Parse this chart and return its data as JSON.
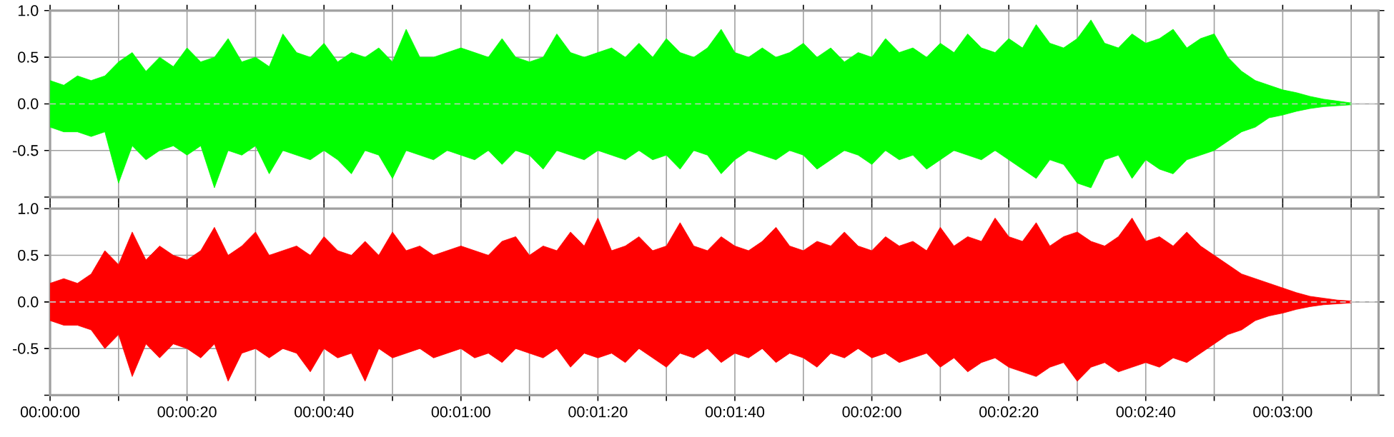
{
  "chart_data": [
    {
      "type": "area",
      "x": [
        0,
        2,
        4,
        6,
        8,
        10,
        12,
        14,
        16,
        18,
        20,
        22,
        24,
        26,
        28,
        30,
        32,
        34,
        36,
        38,
        40,
        42,
        44,
        46,
        48,
        50,
        52,
        54,
        56,
        58,
        60,
        62,
        64,
        66,
        68,
        70,
        72,
        74,
        76,
        78,
        80,
        82,
        84,
        86,
        88,
        90,
        92,
        94,
        96,
        98,
        100,
        102,
        104,
        106,
        108,
        110,
        112,
        114,
        116,
        118,
        120,
        122,
        124,
        126,
        128,
        130,
        132,
        134,
        136,
        138,
        140,
        142,
        144,
        146,
        148,
        150,
        152,
        154,
        156,
        158,
        160,
        162,
        164,
        166,
        168,
        170,
        172,
        174,
        176,
        178,
        180,
        182,
        184,
        186,
        188,
        190
      ],
      "series": [
        {
          "color": "#00ff00",
          "values": [
            0.25,
            0.2,
            0.3,
            0.25,
            0.3,
            0.45,
            0.55,
            0.35,
            0.5,
            0.4,
            0.6,
            0.45,
            0.5,
            0.7,
            0.45,
            0.5,
            0.4,
            0.75,
            0.55,
            0.5,
            0.65,
            0.45,
            0.55,
            0.5,
            0.6,
            0.45,
            0.8,
            0.5,
            0.5,
            0.55,
            0.6,
            0.55,
            0.5,
            0.7,
            0.5,
            0.45,
            0.5,
            0.75,
            0.55,
            0.5,
            0.55,
            0.6,
            0.5,
            0.65,
            0.5,
            0.7,
            0.55,
            0.5,
            0.6,
            0.8,
            0.55,
            0.5,
            0.6,
            0.5,
            0.55,
            0.65,
            0.5,
            0.6,
            0.45,
            0.55,
            0.5,
            0.7,
            0.55,
            0.6,
            0.5,
            0.65,
            0.55,
            0.75,
            0.6,
            0.55,
            0.7,
            0.6,
            0.85,
            0.65,
            0.6,
            0.7,
            0.9,
            0.65,
            0.6,
            0.75,
            0.65,
            0.7,
            0.8,
            0.6,
            0.7,
            0.75,
            0.5,
            0.35,
            0.25,
            0.2,
            0.15,
            0.12,
            0.08,
            0.05,
            0.03,
            0.01
          ]
        },
        {
          "color": "#00ff00",
          "values": [
            -0.25,
            -0.3,
            -0.3,
            -0.35,
            -0.3,
            -0.85,
            -0.45,
            -0.6,
            -0.5,
            -0.45,
            -0.55,
            -0.45,
            -0.9,
            -0.5,
            -0.55,
            -0.45,
            -0.75,
            -0.5,
            -0.55,
            -0.6,
            -0.5,
            -0.6,
            -0.75,
            -0.5,
            -0.55,
            -0.8,
            -0.5,
            -0.55,
            -0.6,
            -0.5,
            -0.55,
            -0.6,
            -0.5,
            -0.65,
            -0.5,
            -0.55,
            -0.7,
            -0.5,
            -0.55,
            -0.6,
            -0.5,
            -0.55,
            -0.6,
            -0.5,
            -0.6,
            -0.55,
            -0.7,
            -0.5,
            -0.55,
            -0.75,
            -0.6,
            -0.5,
            -0.55,
            -0.6,
            -0.5,
            -0.55,
            -0.7,
            -0.6,
            -0.5,
            -0.55,
            -0.65,
            -0.5,
            -0.6,
            -0.55,
            -0.7,
            -0.6,
            -0.5,
            -0.55,
            -0.6,
            -0.5,
            -0.6,
            -0.7,
            -0.8,
            -0.6,
            -0.65,
            -0.85,
            -0.9,
            -0.6,
            -0.55,
            -0.8,
            -0.6,
            -0.7,
            -0.75,
            -0.6,
            -0.55,
            -0.5,
            -0.4,
            -0.3,
            -0.25,
            -0.15,
            -0.12,
            -0.08,
            -0.05,
            -0.03,
            -0.02,
            -0.01
          ]
        }
      ],
      "xlim": [
        0,
        194
      ],
      "xticks": [
        {
          "value": 0,
          "label": null
        },
        {
          "value": 10,
          "label": null
        },
        {
          "value": 20,
          "label": null
        },
        {
          "value": 30,
          "label": null
        },
        {
          "value": 40,
          "label": null
        },
        {
          "value": 50,
          "label": null
        },
        {
          "value": 60,
          "label": null
        },
        {
          "value": 70,
          "label": null
        },
        {
          "value": 80,
          "label": null
        },
        {
          "value": 90,
          "label": null
        },
        {
          "value": 100,
          "label": null
        },
        {
          "value": 110,
          "label": null
        },
        {
          "value": 120,
          "label": null
        },
        {
          "value": 130,
          "label": null
        },
        {
          "value": 140,
          "label": null
        },
        {
          "value": 150,
          "label": null
        },
        {
          "value": 160,
          "label": null
        },
        {
          "value": 170,
          "label": null
        },
        {
          "value": 180,
          "label": null
        },
        {
          "value": 190,
          "label": null
        }
      ],
      "ylim": [
        -1,
        1
      ],
      "yticks": [
        {
          "value": -1,
          "label": null
        },
        {
          "value": -0.5,
          "label": "-0.5"
        },
        {
          "value": 0,
          "label": "0.0"
        },
        {
          "value": 0.5,
          "label": "0.5"
        },
        {
          "value": 1,
          "label": "1.0"
        }
      ],
      "tick_labels": "y",
      "grid": true,
      "ref_lines": [
        {
          "axis": "y",
          "value": 0,
          "color": "#c8c8c8",
          "line_style": "dashed"
        }
      ]
    },
    {
      "type": "area",
      "x": [
        0,
        2,
        4,
        6,
        8,
        10,
        12,
        14,
        16,
        18,
        20,
        22,
        24,
        26,
        28,
        30,
        32,
        34,
        36,
        38,
        40,
        42,
        44,
        46,
        48,
        50,
        52,
        54,
        56,
        58,
        60,
        62,
        64,
        66,
        68,
        70,
        72,
        74,
        76,
        78,
        80,
        82,
        84,
        86,
        88,
        90,
        92,
        94,
        96,
        98,
        100,
        102,
        104,
        106,
        108,
        110,
        112,
        114,
        116,
        118,
        120,
        122,
        124,
        126,
        128,
        130,
        132,
        134,
        136,
        138,
        140,
        142,
        144,
        146,
        148,
        150,
        152,
        154,
        156,
        158,
        160,
        162,
        164,
        166,
        168,
        170,
        172,
        174,
        176,
        178,
        180,
        182,
        184,
        186,
        188,
        190
      ],
      "series": [
        {
          "color": "#ff0000",
          "values": [
            0.2,
            0.25,
            0.2,
            0.3,
            0.55,
            0.4,
            0.75,
            0.45,
            0.6,
            0.5,
            0.45,
            0.55,
            0.8,
            0.5,
            0.6,
            0.75,
            0.5,
            0.55,
            0.6,
            0.5,
            0.7,
            0.55,
            0.5,
            0.65,
            0.5,
            0.75,
            0.55,
            0.6,
            0.5,
            0.55,
            0.6,
            0.55,
            0.5,
            0.65,
            0.7,
            0.5,
            0.6,
            0.55,
            0.75,
            0.6,
            0.9,
            0.55,
            0.6,
            0.7,
            0.55,
            0.6,
            0.85,
            0.6,
            0.55,
            0.7,
            0.6,
            0.55,
            0.65,
            0.8,
            0.6,
            0.55,
            0.65,
            0.6,
            0.75,
            0.6,
            0.55,
            0.7,
            0.6,
            0.65,
            0.55,
            0.8,
            0.6,
            0.7,
            0.65,
            0.9,
            0.7,
            0.65,
            0.85,
            0.6,
            0.7,
            0.75,
            0.65,
            0.6,
            0.7,
            0.9,
            0.65,
            0.7,
            0.6,
            0.75,
            0.6,
            0.5,
            0.4,
            0.3,
            0.25,
            0.2,
            0.15,
            0.1,
            0.06,
            0.04,
            0.02,
            0.01
          ]
        },
        {
          "color": "#ff0000",
          "values": [
            -0.2,
            -0.25,
            -0.25,
            -0.3,
            -0.5,
            -0.35,
            -0.8,
            -0.45,
            -0.6,
            -0.45,
            -0.5,
            -0.6,
            -0.45,
            -0.85,
            -0.55,
            -0.5,
            -0.6,
            -0.5,
            -0.55,
            -0.75,
            -0.5,
            -0.6,
            -0.55,
            -0.85,
            -0.5,
            -0.6,
            -0.55,
            -0.5,
            -0.6,
            -0.55,
            -0.5,
            -0.6,
            -0.55,
            -0.65,
            -0.5,
            -0.55,
            -0.6,
            -0.5,
            -0.7,
            -0.55,
            -0.6,
            -0.55,
            -0.65,
            -0.5,
            -0.6,
            -0.7,
            -0.55,
            -0.6,
            -0.5,
            -0.65,
            -0.55,
            -0.6,
            -0.5,
            -0.65,
            -0.55,
            -0.6,
            -0.7,
            -0.55,
            -0.6,
            -0.5,
            -0.6,
            -0.55,
            -0.65,
            -0.6,
            -0.55,
            -0.7,
            -0.6,
            -0.75,
            -0.65,
            -0.6,
            -0.7,
            -0.75,
            -0.8,
            -0.7,
            -0.65,
            -0.85,
            -0.7,
            -0.65,
            -0.75,
            -0.7,
            -0.65,
            -0.7,
            -0.6,
            -0.65,
            -0.55,
            -0.45,
            -0.35,
            -0.3,
            -0.2,
            -0.15,
            -0.12,
            -0.08,
            -0.05,
            -0.03,
            -0.02,
            -0.01
          ]
        }
      ],
      "xlim": [
        0,
        194
      ],
      "xticks": [
        {
          "value": 0,
          "label": "00:00:00"
        },
        {
          "value": 10,
          "label": null
        },
        {
          "value": 20,
          "label": "00:00:20"
        },
        {
          "value": 30,
          "label": null
        },
        {
          "value": 40,
          "label": "00:00:40"
        },
        {
          "value": 50,
          "label": null
        },
        {
          "value": 60,
          "label": "00:01:00"
        },
        {
          "value": 70,
          "label": null
        },
        {
          "value": 80,
          "label": "00:01:20"
        },
        {
          "value": 90,
          "label": null
        },
        {
          "value": 100,
          "label": "00:01:40"
        },
        {
          "value": 110,
          "label": null
        },
        {
          "value": 120,
          "label": "00:02:00"
        },
        {
          "value": 130,
          "label": null
        },
        {
          "value": 140,
          "label": "00:02:20"
        },
        {
          "value": 150,
          "label": null
        },
        {
          "value": 160,
          "label": "00:02:40"
        },
        {
          "value": 170,
          "label": null
        },
        {
          "value": 180,
          "label": "00:03:00"
        },
        {
          "value": 190,
          "label": null
        }
      ],
      "ylim": [
        -1,
        1
      ],
      "yticks": [
        {
          "value": -1,
          "label": null
        },
        {
          "value": -0.5,
          "label": "-0.5"
        },
        {
          "value": 0,
          "label": "0.0"
        },
        {
          "value": 0.5,
          "label": "0.5"
        },
        {
          "value": 1,
          "label": "1.0"
        }
      ],
      "grid": true,
      "ref_lines": [
        {
          "axis": "y",
          "value": 0,
          "color": "#c8c8c8",
          "line_style": "dashed"
        }
      ]
    }
  ]
}
